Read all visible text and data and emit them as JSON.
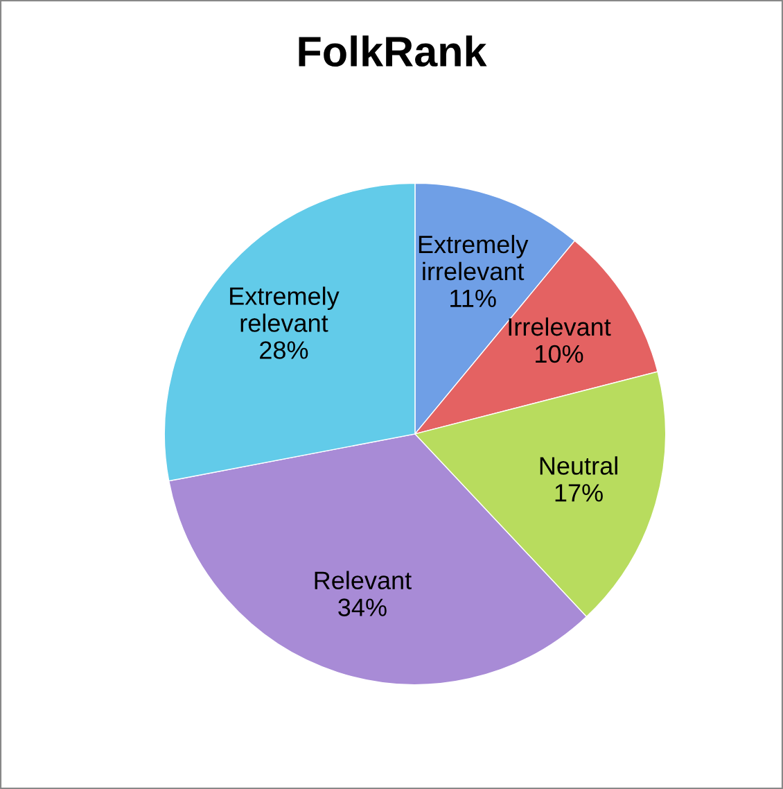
{
  "chart_data": {
    "type": "pie",
    "title": "FolkRank",
    "categories": [
      "Extremely\nirrelevant",
      "Irrelevant",
      "Neutral",
      "Relevant",
      "Extremely\nrelevant"
    ],
    "values": [
      11,
      10,
      17,
      34,
      28
    ],
    "colors": [
      "#6f9fe6",
      "#e46262",
      "#b8dc5e",
      "#a88bd6",
      "#62cbe9"
    ],
    "value_labels": [
      "11%",
      "10%",
      "17%",
      "34%",
      "28%"
    ],
    "legend": false
  }
}
